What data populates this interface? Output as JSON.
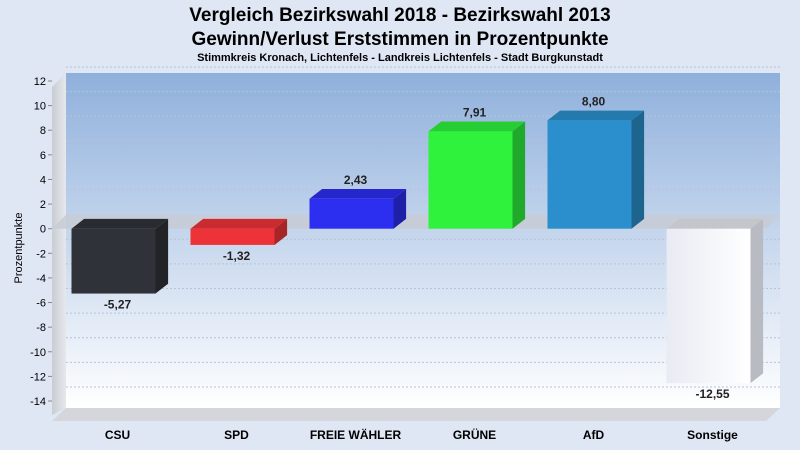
{
  "header": {
    "title_line1": "Vergleich Bezirkswahl 2018 - Bezirkswahl 2013",
    "title_line2": "Gewinn/Verlust Erststimmen in Prozentpunkte",
    "subtitle": "Stimmkreis Kronach, Lichtenfels - Landkreis Lichtenfels - Stadt Burgkunstadt"
  },
  "chart_data": {
    "type": "bar",
    "title": "Vergleich Bezirkswahl 2018 - Bezirkswahl 2013 / Gewinn/Verlust Erststimmen in Prozentpunkte",
    "subtitle": "Stimmkreis Kronach, Lichtenfels - Landkreis Lichtenfels - Stadt Burgkunstadt",
    "ylabel": "Prozentpunkte",
    "xlabel": "",
    "ylim": [
      -14,
      12
    ],
    "yticks": [
      12,
      10,
      8,
      6,
      4,
      2,
      0,
      -2,
      -4,
      -6,
      -8,
      -10,
      -12,
      -14
    ],
    "grid": true,
    "legend": "none",
    "categories": [
      "CSU",
      "SPD",
      "FREIE WÄHLER",
      "GRÜNE",
      "AfD",
      "Sonstige"
    ],
    "values": [
      -5.27,
      -1.32,
      2.43,
      7.91,
      8.8,
      -12.55
    ],
    "value_labels": [
      "-5,27",
      "-1,32",
      "2,43",
      "7,91",
      "8,80",
      "-12,55"
    ],
    "colors": [
      "#2f3238",
      "#ee3338",
      "#2c2ef0",
      "#2ef23c",
      "#2a8fcc",
      "#f5f6fa"
    ]
  }
}
